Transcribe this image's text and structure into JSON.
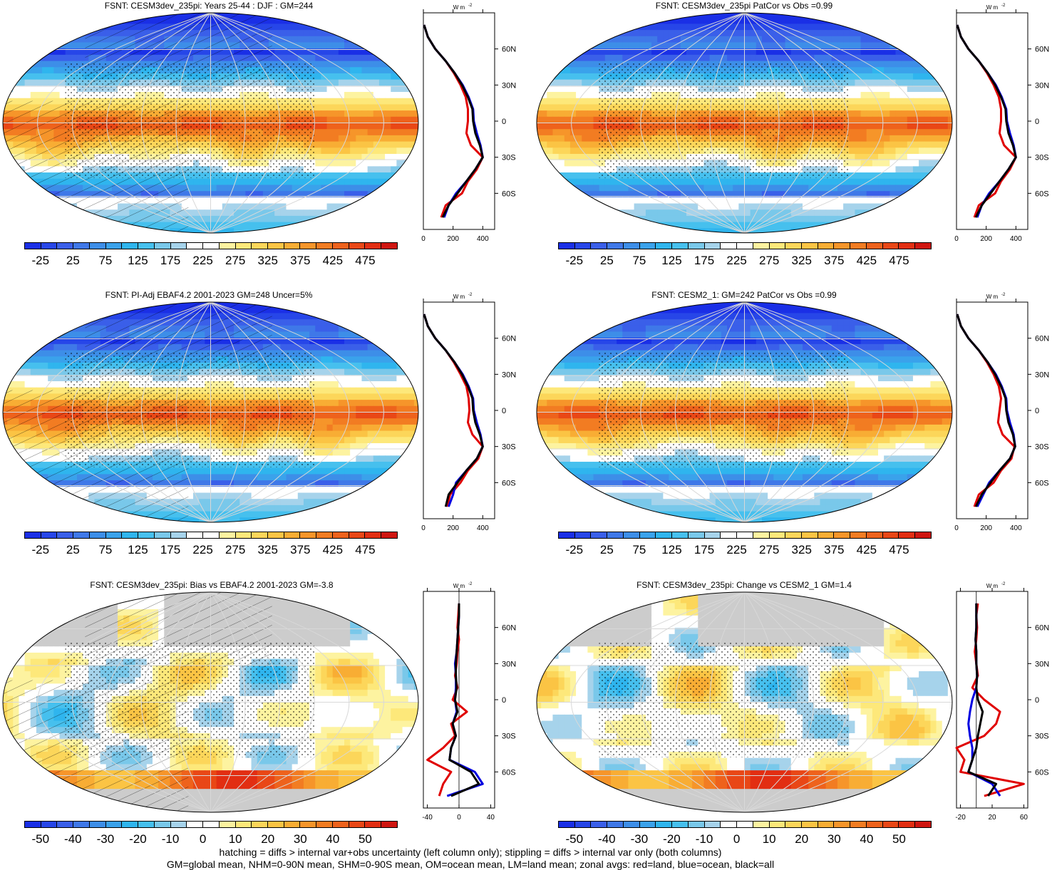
{
  "panels": [
    {
      "title": "FSNT: CESM3dev_235pi: Years 25-44 : DJF : GM=244",
      "cbar": "abs",
      "hatch": true,
      "stipple": true
    },
    {
      "title": "FSNT: CESM3dev_235pi PatCor vs Obs =0.99",
      "cbar": "abs",
      "hatch": false,
      "stipple": true
    },
    {
      "title": "FSNT: PI-Adj EBAF4.2 2001-2023 GM=248 Uncer=5%",
      "cbar": "abs",
      "hatch": true,
      "stipple": true
    },
    {
      "title": "FSNT: CESM2_1: GM=242 PatCor vs Obs =0.99",
      "cbar": "abs",
      "hatch": false,
      "stipple": true
    },
    {
      "title": "FSNT: CESM3dev_235pi: Bias vs EBAF4.2 2001-2023 GM=-3.8",
      "cbar": "diff",
      "hatch": true,
      "stipple": true
    },
    {
      "title": "FSNT: CESM3dev_235pi: Change vs CESM2_1 GM=1.4",
      "cbar": "diff",
      "hatch": false,
      "stipple": true
    }
  ],
  "colorbars": {
    "abs": {
      "labels": [
        "-25",
        "25",
        "75",
        "125",
        "175",
        "225",
        "275",
        "325",
        "375",
        "425",
        "475"
      ],
      "colors": [
        "#1a2fe6",
        "#2746e8",
        "#3a5fe9",
        "#3f78e8",
        "#3d8ee8",
        "#3aa2eb",
        "#2fb5ee",
        "#46c0ee",
        "#79c8ea",
        "#a6d3eb",
        "#ffffff",
        "#ffffff",
        "#fdf3a0",
        "#fde87a",
        "#fcd65a",
        "#fbc444",
        "#f8ad34",
        "#f6952a",
        "#f27c22",
        "#ee621c",
        "#e94716",
        "#e22e12",
        "#cf1510"
      ]
    },
    "diff": {
      "labels": [
        "-50",
        "-40",
        "-30",
        "-20",
        "-10",
        "0",
        "10",
        "20",
        "30",
        "40",
        "50"
      ],
      "colors": [
        "#1a2fe6",
        "#2746e8",
        "#3a5fe9",
        "#3f78e8",
        "#3d8ee8",
        "#3aa2eb",
        "#2fb5ee",
        "#46c0ee",
        "#79c8ea",
        "#a6d3eb",
        "#ffffff",
        "#ffffff",
        "#fdf3a0",
        "#fde87a",
        "#fcd65a",
        "#fbc444",
        "#f8ad34",
        "#f6952a",
        "#f27c22",
        "#ee621c",
        "#e94716",
        "#e22e12",
        "#cf1510"
      ]
    }
  },
  "zonal_units": "W m",
  "zonal_units_exp": "-2",
  "lat_labels": [
    "60N",
    "30N",
    "0",
    "30S",
    "60S"
  ],
  "footnote": [
    "hatching = diffs > internal var+obs uncertainty (left column only); stippling = diffs > internal var only (both columns)",
    "GM=global mean, NHM=0-90N mean, SHM=0-90S mean, OM=ocean mean, LM=land mean; zonal avgs: red=land, blue=ocean, black=all"
  ],
  "chart_data": [
    {
      "type": "line",
      "title": "FSNT: CESM3dev_235pi: Years 25-44 : DJF : GM=244",
      "x_ticks": [
        "0",
        "200",
        "400"
      ],
      "xlim": [
        0,
        480
      ],
      "y": [
        80,
        70,
        60,
        50,
        40,
        30,
        20,
        10,
        0,
        -10,
        -20,
        -30,
        -40,
        -50,
        -60,
        -70,
        -80
      ],
      "series": [
        {
          "color": "#000000",
          "values": [
            5,
            30,
            80,
            150,
            210,
            260,
            300,
            330,
            335,
            350,
            380,
            400,
            350,
            290,
            230,
            170,
            130
          ]
        },
        {
          "color": "#e00000",
          "values": [
            5,
            30,
            80,
            150,
            205,
            250,
            285,
            300,
            300,
            290,
            320,
            400,
            360,
            300,
            260,
            150,
            120
          ]
        },
        {
          "color": "#0000e0",
          "values": [
            5,
            30,
            80,
            150,
            210,
            265,
            305,
            335,
            340,
            360,
            385,
            400,
            350,
            290,
            220,
            170,
            140
          ]
        }
      ]
    },
    {
      "type": "line",
      "title": "FSNT: CESM3dev_235pi PatCor vs Obs =0.99",
      "x_ticks": [
        "0",
        "200",
        "400"
      ],
      "xlim": [
        0,
        480
      ],
      "y": [
        80,
        70,
        60,
        50,
        40,
        30,
        20,
        10,
        0,
        -10,
        -20,
        -30,
        -40,
        -50,
        -60,
        -70,
        -80
      ],
      "series": [
        {
          "color": "#000000",
          "values": [
            5,
            30,
            80,
            150,
            210,
            260,
            300,
            330,
            335,
            350,
            380,
            400,
            350,
            290,
            230,
            170,
            130
          ]
        },
        {
          "color": "#e00000",
          "values": [
            5,
            30,
            80,
            150,
            205,
            250,
            285,
            300,
            300,
            290,
            320,
            400,
            360,
            300,
            260,
            150,
            120
          ]
        },
        {
          "color": "#0000e0",
          "values": [
            5,
            30,
            80,
            150,
            210,
            265,
            305,
            335,
            340,
            360,
            385,
            400,
            350,
            290,
            220,
            170,
            140
          ]
        }
      ]
    },
    {
      "type": "line",
      "title": "FSNT: PI-Adj EBAF4.2 2001-2023 GM=248 Uncer=5%",
      "x_ticks": [
        "0",
        "200",
        "400"
      ],
      "xlim": [
        0,
        480
      ],
      "y": [
        80,
        70,
        60,
        50,
        40,
        30,
        20,
        10,
        0,
        -10,
        -20,
        -30,
        -40,
        -50,
        -60,
        -70,
        -80
      ],
      "series": [
        {
          "color": "#000000",
          "values": [
            5,
            30,
            80,
            150,
            210,
            260,
            300,
            330,
            335,
            350,
            380,
            400,
            360,
            290,
            230,
            170,
            150
          ]
        },
        {
          "color": "#e00000",
          "values": [
            5,
            30,
            80,
            150,
            205,
            250,
            290,
            305,
            310,
            300,
            330,
            400,
            370,
            300,
            250,
            180,
            160
          ]
        },
        {
          "color": "#0000e0",
          "values": [
            5,
            30,
            80,
            150,
            210,
            265,
            305,
            335,
            340,
            360,
            385,
            400,
            360,
            290,
            220,
            200,
            170
          ]
        }
      ]
    },
    {
      "type": "line",
      "title": "FSNT: CESM2_1: GM=242 PatCor vs Obs =0.99",
      "x_ticks": [
        "0",
        "200",
        "400"
      ],
      "xlim": [
        0,
        480
      ],
      "y": [
        80,
        70,
        60,
        50,
        40,
        30,
        20,
        10,
        0,
        -10,
        -20,
        -30,
        -40,
        -50,
        -60,
        -70,
        -80
      ],
      "series": [
        {
          "color": "#000000",
          "values": [
            5,
            30,
            80,
            150,
            210,
            260,
            300,
            330,
            335,
            350,
            380,
            395,
            360,
            290,
            230,
            170,
            130
          ]
        },
        {
          "color": "#e00000",
          "values": [
            5,
            30,
            80,
            150,
            205,
            250,
            285,
            300,
            290,
            280,
            310,
            390,
            370,
            300,
            250,
            150,
            120
          ]
        },
        {
          "color": "#0000e0",
          "values": [
            5,
            30,
            80,
            150,
            210,
            265,
            305,
            335,
            340,
            360,
            385,
            395,
            360,
            290,
            220,
            180,
            140
          ]
        }
      ]
    },
    {
      "type": "line",
      "title": "FSNT: CESM3dev_235pi: Bias vs EBAF4.2 2001-2023 GM=-3.8",
      "x_ticks": [
        "-40",
        "0",
        "40"
      ],
      "xlim": [
        -45,
        45
      ],
      "y": [
        80,
        70,
        60,
        50,
        40,
        30,
        20,
        10,
        0,
        -10,
        -20,
        -30,
        -40,
        -50,
        -60,
        -70,
        -80
      ],
      "series": [
        {
          "color": "#000000",
          "values": [
            0,
            0,
            -1,
            -2,
            -3,
            -4,
            -4,
            -3,
            -5,
            -2,
            -8,
            -4,
            -10,
            -12,
            15,
            25,
            -10
          ]
        },
        {
          "color": "#e00000",
          "values": [
            0,
            -1,
            -2,
            0,
            -2,
            -3,
            -5,
            -2,
            -8,
            10,
            -10,
            -5,
            -20,
            -40,
            -10,
            -20,
            -25
          ]
        },
        {
          "color": "#0000e0",
          "values": [
            0,
            0,
            -1,
            -2,
            -3,
            -5,
            -4,
            -4,
            -5,
            -3,
            -8,
            -4,
            -10,
            -12,
            20,
            30,
            -15
          ]
        }
      ]
    },
    {
      "type": "line",
      "title": "FSNT: CESM3dev_235pi: Change vs CESM2_1 GM=1.4",
      "x_ticks": [
        "-20",
        "20",
        "60"
      ],
      "xlim": [
        -25,
        65
      ],
      "y": [
        80,
        70,
        60,
        50,
        40,
        30,
        20,
        10,
        0,
        -10,
        -20,
        -30,
        -40,
        -50,
        -60,
        -70,
        -80
      ],
      "series": [
        {
          "color": "#000000",
          "values": [
            0,
            0,
            0,
            -1,
            0,
            0,
            1,
            0,
            2,
            8,
            5,
            2,
            0,
            -5,
            -10,
            25,
            15
          ]
        },
        {
          "color": "#e00000",
          "values": [
            2,
            0,
            1,
            0,
            -2,
            0,
            2,
            -5,
            10,
            30,
            25,
            10,
            -25,
            -15,
            -20,
            60,
            10
          ]
        },
        {
          "color": "#0000e0",
          "values": [
            0,
            0,
            0,
            -1,
            0,
            0,
            1,
            0,
            -5,
            -8,
            -10,
            -8,
            -5,
            -5,
            -10,
            20,
            30
          ]
        }
      ]
    }
  ]
}
